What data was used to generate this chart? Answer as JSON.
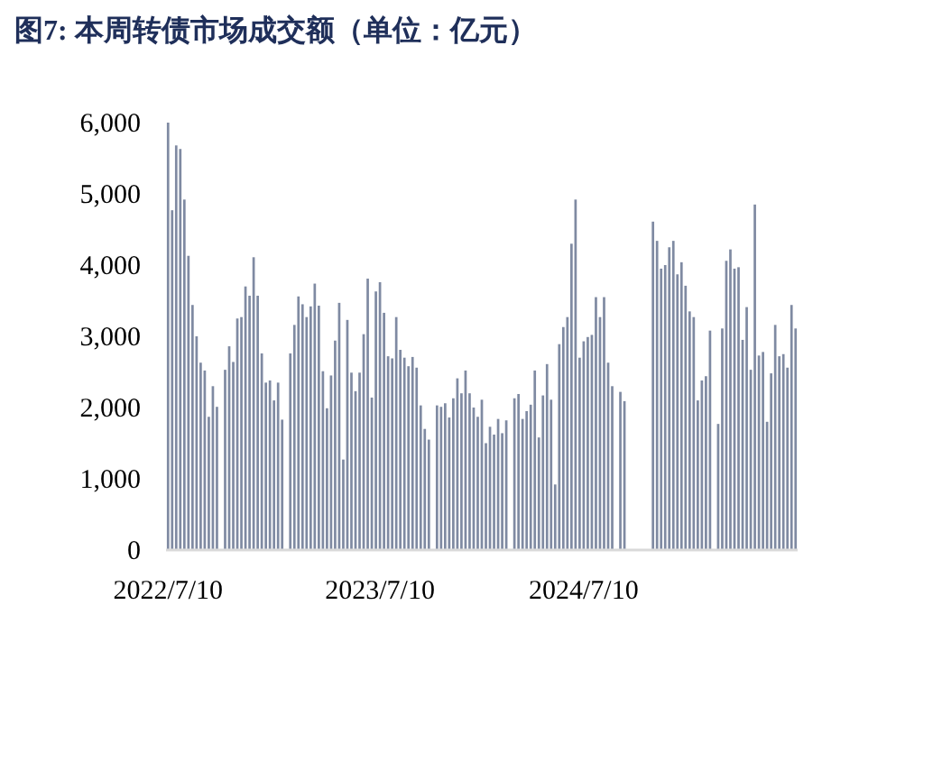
{
  "chart_data": {
    "type": "bar",
    "title": "图7:  本周转债市场成交额（单位：亿元）",
    "categories": [
      "2022/7/10",
      null,
      null,
      null,
      null,
      null,
      null,
      null,
      null,
      null,
      null,
      null,
      null,
      null,
      null,
      null,
      null,
      null,
      null,
      null,
      null,
      null,
      null,
      null,
      null,
      null,
      null,
      null,
      null,
      null,
      null,
      null,
      null,
      null,
      null,
      null,
      null,
      null,
      null,
      null,
      null,
      null,
      null,
      null,
      null,
      null,
      null,
      null,
      null,
      null,
      null,
      null,
      "2023/7/10",
      null,
      null,
      null,
      null,
      null,
      null,
      null,
      null,
      null,
      null,
      null,
      null,
      null,
      null,
      null,
      null,
      null,
      null,
      null,
      null,
      null,
      null,
      null,
      null,
      null,
      null,
      null,
      null,
      null,
      null,
      null,
      null,
      null,
      null,
      null,
      null,
      null,
      null,
      null,
      null,
      null,
      null,
      null,
      null,
      null,
      null,
      null,
      null,
      null,
      "2024/7/10",
      null,
      null,
      null,
      null,
      null,
      null,
      null,
      null,
      null,
      null,
      null,
      null,
      null,
      null,
      null,
      null,
      null,
      null,
      null,
      null,
      null,
      null,
      null,
      null,
      null,
      null,
      null,
      null,
      null,
      null,
      null,
      null,
      null,
      null,
      null,
      null,
      null,
      null,
      null,
      null,
      null,
      null,
      null,
      null,
      null,
      null,
      null,
      null,
      null,
      null,
      null,
      null
    ],
    "values": [
      6000,
      4770,
      5680,
      5630,
      4920,
      4130,
      3440,
      3000,
      2630,
      2520,
      1870,
      2300,
      2010,
      0,
      2530,
      2860,
      2640,
      3250,
      3270,
      3700,
      3570,
      4110,
      3570,
      2760,
      2350,
      2380,
      2100,
      2350,
      1830,
      0,
      2760,
      3160,
      3560,
      3450,
      3270,
      3420,
      3740,
      3430,
      2510,
      1990,
      2450,
      2940,
      3470,
      1270,
      3230,
      2490,
      2230,
      2490,
      3030,
      3810,
      2140,
      3630,
      3760,
      3330,
      2720,
      2690,
      3270,
      2810,
      2700,
      2580,
      2710,
      2560,
      2030,
      1700,
      1550,
      0,
      2030,
      2010,
      2060,
      1860,
      2130,
      2410,
      2200,
      2520,
      2200,
      2000,
      1870,
      2110,
      1500,
      1730,
      1620,
      1840,
      1640,
      1820,
      0,
      2130,
      2190,
      1840,
      1950,
      2040,
      2520,
      1580,
      2170,
      2610,
      2110,
      920,
      2890,
      3130,
      3270,
      4300,
      4920,
      2700,
      2930,
      2990,
      3020,
      3550,
      3270,
      3550,
      2630,
      2300,
      0,
      2220,
      2090,
      0,
      0,
      0,
      0,
      0,
      0,
      4610,
      4340,
      3950,
      4000,
      4250,
      4340,
      3870,
      4040,
      3710,
      3350,
      3270,
      2100,
      2380,
      2440,
      3080,
      0,
      1770,
      3110,
      4060,
      4220,
      3950,
      3970,
      2950,
      3410,
      2530,
      4850,
      2730,
      2780,
      1800,
      2480,
      3160,
      2720,
      2750,
      2560,
      3440,
      3110
    ],
    "color": "#7f8aa2",
    "ylim": [
      0,
      6000
    ],
    "yticks": [
      {
        "value": 0,
        "label": "0"
      },
      {
        "value": 1000,
        "label": "1,000"
      },
      {
        "value": 2000,
        "label": "2,000"
      },
      {
        "value": 3000,
        "label": "3,000"
      },
      {
        "value": 4000,
        "label": "4,000"
      },
      {
        "value": 5000,
        "label": "5,000"
      },
      {
        "value": 6000,
        "label": "6,000"
      }
    ],
    "grid": false
  }
}
